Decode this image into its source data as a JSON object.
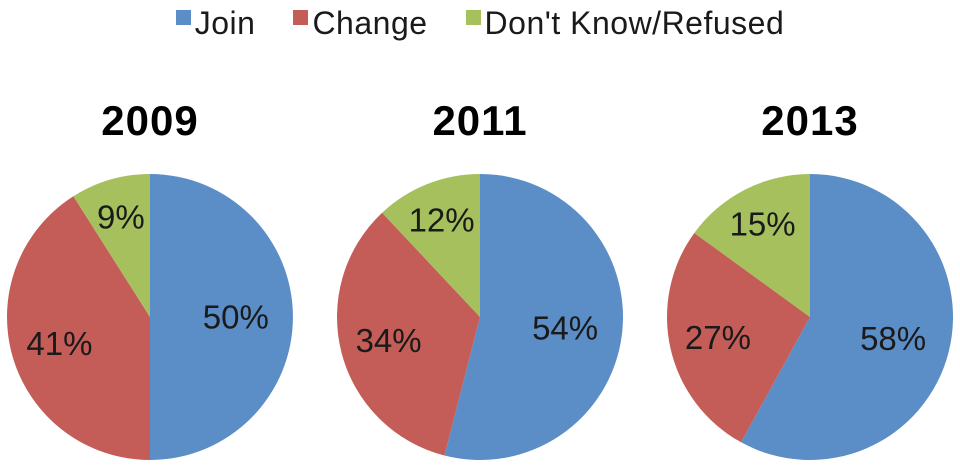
{
  "page": {
    "background": "#ffffff"
  },
  "legend": {
    "items": [
      {
        "label": "Join",
        "color": "#5B8EC6"
      },
      {
        "label": "Change",
        "color": "#C45D57"
      },
      {
        "label": "Don't Know/Refused",
        "color": "#A6C05E"
      }
    ]
  },
  "colors": {
    "join": "#5B8EC6",
    "change": "#C45D57",
    "dont_know_refused": "#A6C05E",
    "label_text": "#1a1a1a",
    "title_text": "#000000"
  },
  "chart_data": [
    {
      "type": "pie",
      "title": "2009",
      "categories": [
        "Join",
        "Change",
        "Don't Know/Refused"
      ],
      "values": [
        50,
        41,
        9
      ],
      "value_labels": [
        "50%",
        "41%",
        "9%"
      ],
      "colors": [
        "#5B8EC6",
        "#C45D57",
        "#A6C05E"
      ],
      "start_angle_deg": 0,
      "direction": "clockwise",
      "legend_position": "top"
    },
    {
      "type": "pie",
      "title": "2011",
      "categories": [
        "Join",
        "Change",
        "Don't Know/Refused"
      ],
      "values": [
        54,
        34,
        12
      ],
      "value_labels": [
        "54%",
        "34%",
        "12%"
      ],
      "colors": [
        "#5B8EC6",
        "#C45D57",
        "#A6C05E"
      ],
      "start_angle_deg": 0,
      "direction": "clockwise",
      "legend_position": "top"
    },
    {
      "type": "pie",
      "title": "2013",
      "categories": [
        "Join",
        "Change",
        "Don't Know/Refused"
      ],
      "values": [
        58,
        27,
        15
      ],
      "value_labels": [
        "58%",
        "27%",
        "15%"
      ],
      "colors": [
        "#5B8EC6",
        "#C45D57",
        "#A6C05E"
      ],
      "start_angle_deg": 0,
      "direction": "clockwise",
      "legend_position": "top"
    }
  ]
}
